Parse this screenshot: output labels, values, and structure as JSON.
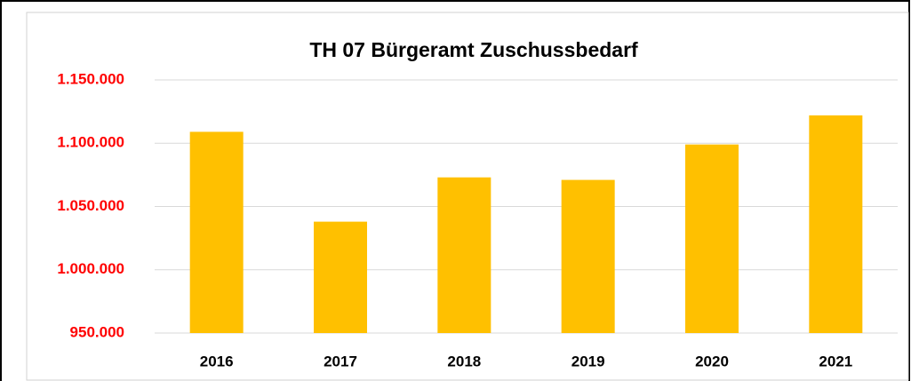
{
  "chart_data": {
    "type": "bar",
    "title": "TH 07 Bürgeramt Zuschussbedarf",
    "categories": [
      "2016",
      "2017",
      "2018",
      "2019",
      "2020",
      "2021"
    ],
    "values": [
      1109000,
      1038000,
      1073000,
      1071000,
      1099000,
      1122000
    ],
    "color": "#ffc000",
    "ylim": [
      950000,
      1150000
    ],
    "yticks": [
      {
        "value": 950000,
        "label": "950.000"
      },
      {
        "value": 1000000,
        "label": "1.000.000"
      },
      {
        "value": 1050000,
        "label": "1.050.000"
      },
      {
        "value": 1100000,
        "label": "1.100.000"
      },
      {
        "value": 1150000,
        "label": "1.150.000"
      }
    ],
    "grid": true
  }
}
